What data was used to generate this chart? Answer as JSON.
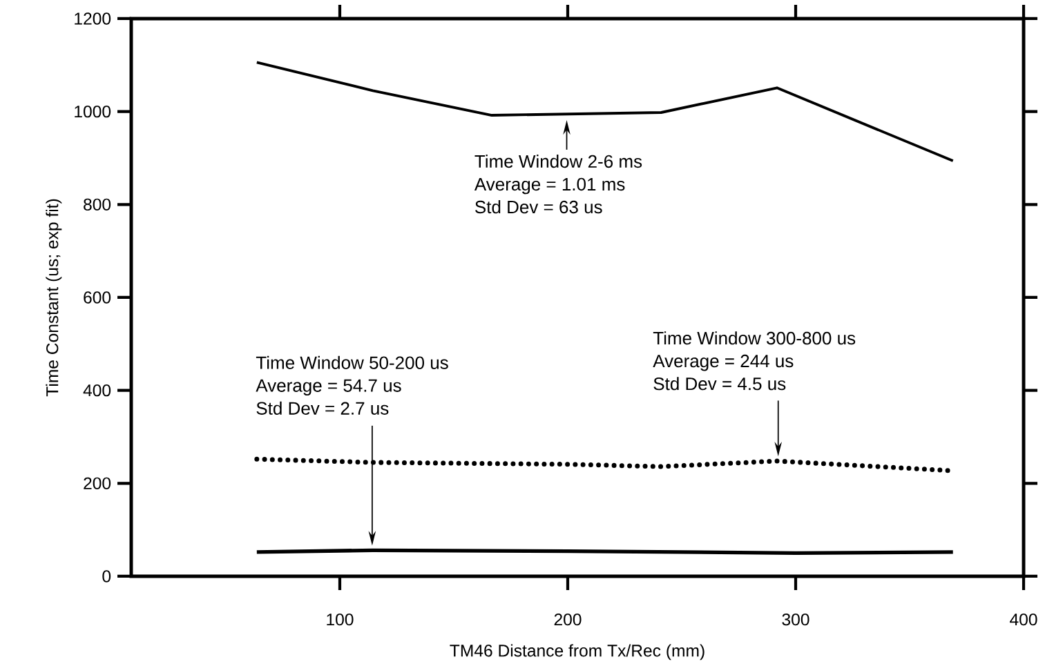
{
  "chart_data": {
    "type": "line",
    "xlabel": "TM46 Distance from Tx/Rec (mm)",
    "ylabel": "Time Constant (us; exp fit)",
    "xlim": [
      8.5,
      400
    ],
    "xticks": [
      100,
      200,
      300,
      400
    ],
    "ylim": [
      0,
      1200
    ],
    "yticks": [
      0,
      200,
      400,
      600,
      800,
      1000,
      1200
    ],
    "grid": false,
    "marker": "none",
    "series": [
      {
        "color": "#000000",
        "line_style": "solid",
        "x": [
          63.6,
          114.5,
          166.7,
          241,
          291.8,
          369
        ],
        "values": [
          1106,
          1045,
          992,
          998,
          1051,
          894
        ]
      },
      {
        "color": "#000000",
        "line_style": "dotted",
        "x": [
          63.6,
          114.5,
          200,
          241,
          291.8,
          369
        ],
        "values": [
          252,
          245,
          241,
          236,
          248,
          227
        ]
      },
      {
        "color": "#000000",
        "line_style": "solid",
        "x": [
          63.6,
          114.5,
          200,
          300,
          369
        ],
        "values": [
          52,
          56,
          54,
          50,
          52
        ]
      }
    ],
    "annotations": [
      "Time Window 2-6 ms",
      "Average = 1.01 ms",
      "Std Dev = 63 us",
      "Time Window 50-200 us",
      "Average = 54.7 us",
      "Std Dev = 2.7 us",
      "Time Window 300-800 us",
      "Average = 244 us",
      "Std Dev = 4.5 us"
    ]
  }
}
